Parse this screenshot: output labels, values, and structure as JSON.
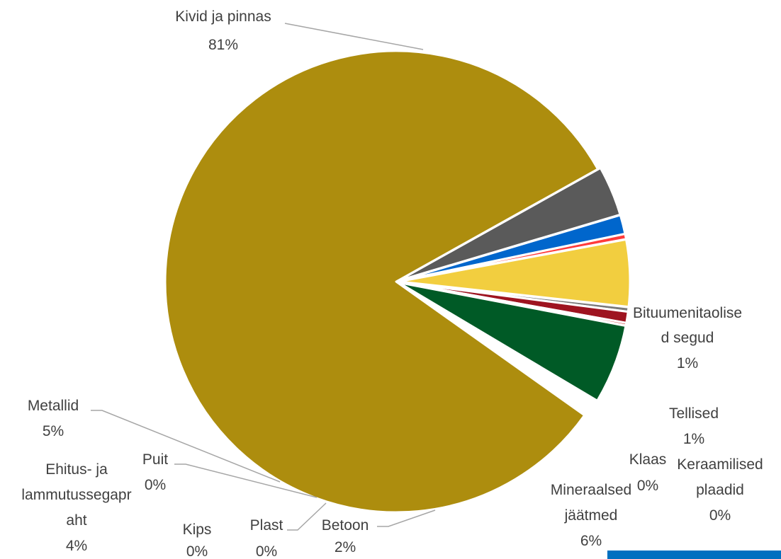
{
  "chart_data": {
    "type": "pie",
    "slices": [
      {
        "name": "Kivid ja pinnas",
        "value": 81,
        "label": "81%",
        "color": "#AD8D0E"
      },
      {
        "name": "Mineraalsed jäätmed",
        "value": 6,
        "label": "6%",
        "color": "#5A5A5A"
      },
      {
        "name": "Keraamilised plaadid",
        "value": 0,
        "label": "0%",
        "color": "#ED7D31"
      },
      {
        "name": "Tellised",
        "value": 1,
        "label": "1%",
        "color": "#0066CC"
      },
      {
        "name": "Klaas",
        "value": 0,
        "label": "0%",
        "color": "#FF3B3B"
      },
      {
        "name": "Bituumenitaolised segud",
        "value": 1,
        "label": "1%",
        "color": "#A5A5A5"
      },
      {
        "name": "Betoon",
        "value": 2,
        "label": "2%",
        "color": "#F2CE3F"
      },
      {
        "name": "Plast",
        "value": 0,
        "label": "0%",
        "color": "#7A7A7A"
      },
      {
        "name": "Kips",
        "value": 0,
        "label": "0%",
        "color": "#505050"
      },
      {
        "name": "Ehitus- ja lammutussegapraht",
        "value": 4,
        "label": "4%",
        "color": "#9E1420"
      },
      {
        "name": "Puit",
        "value": 0,
        "label": "0%",
        "color": "#C00000"
      },
      {
        "name": "Metallid",
        "value": 5,
        "label": "5%",
        "color": "#005A26"
      }
    ],
    "legend": "none",
    "data_labels": "outside, category name and percentage"
  }
}
